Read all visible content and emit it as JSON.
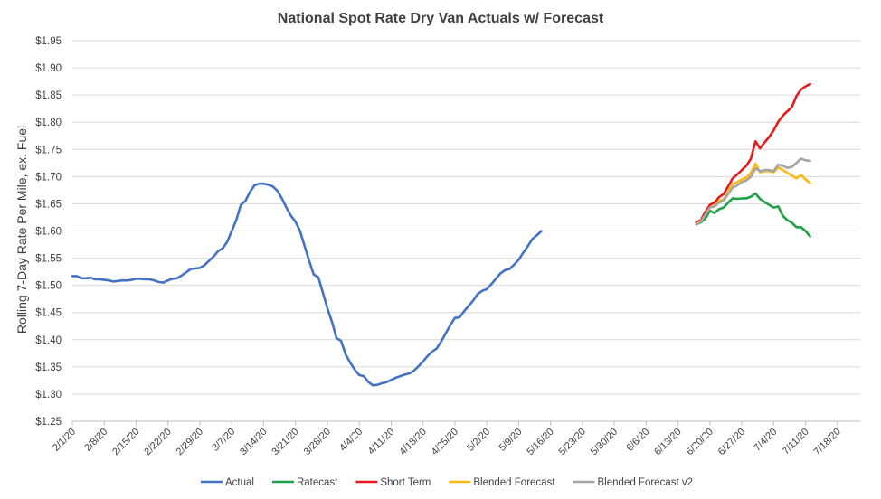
{
  "chart_data": {
    "type": "line",
    "title": "National Spot Rate Dry Van Actuals w/ Forecast",
    "ylabel": "Rolling 7-Day Rate Per Mile, ex. Fuel",
    "xlabel": "",
    "ylim": [
      1.25,
      1.95
    ],
    "yticks": [
      1.25,
      1.3,
      1.35,
      1.4,
      1.45,
      1.5,
      1.55,
      1.6,
      1.65,
      1.7,
      1.75,
      1.8,
      1.85,
      1.9,
      1.95
    ],
    "ytick_labels": [
      "$1.25",
      "$1.30",
      "$1.35",
      "$1.40",
      "$1.45",
      "$1.50",
      "$1.55",
      "$1.60",
      "$1.65",
      "$1.70",
      "$1.75",
      "$1.80",
      "$1.85",
      "$1.90",
      "$1.95"
    ],
    "x_start": "2/1/20",
    "x_end": "7/23/20",
    "xtick_labels": [
      "2/1/20",
      "2/8/20",
      "2/15/20",
      "2/22/20",
      "2/29/20",
      "3/7/20",
      "3/14/20",
      "3/21/20",
      "3/28/20",
      "4/4/20",
      "4/11/20",
      "4/18/20",
      "4/25/20",
      "5/2/20",
      "5/9/20",
      "5/16/20",
      "5/23/20",
      "5/30/20",
      "6/6/20",
      "6/13/20",
      "6/20/20",
      "6/27/20",
      "7/4/20",
      "7/11/20",
      "7/18/20"
    ],
    "grid": "horizontal",
    "legend": "bottom",
    "series": [
      {
        "name": "Actual",
        "color": "#4472c4",
        "start": "2/1/20",
        "values": [
          1.517,
          1.517,
          1.513,
          1.513,
          1.514,
          1.511,
          1.511,
          1.51,
          1.509,
          1.507,
          1.508,
          1.509,
          1.509,
          1.51,
          1.512,
          1.512,
          1.511,
          1.511,
          1.509,
          1.506,
          1.505,
          1.509,
          1.512,
          1.513,
          1.518,
          1.524,
          1.53,
          1.531,
          1.532,
          1.537,
          1.545,
          1.553,
          1.563,
          1.568,
          1.58,
          1.6,
          1.62,
          1.648,
          1.655,
          1.672,
          1.684,
          1.687,
          1.687,
          1.685,
          1.682,
          1.674,
          1.66,
          1.643,
          1.628,
          1.617,
          1.6,
          1.572,
          1.545,
          1.52,
          1.515,
          1.487,
          1.458,
          1.433,
          1.403,
          1.398,
          1.373,
          1.358,
          1.345,
          1.335,
          1.333,
          1.322,
          1.316,
          1.317,
          1.32,
          1.322,
          1.326,
          1.33,
          1.333,
          1.336,
          1.338,
          1.343,
          1.351,
          1.36,
          1.37,
          1.378,
          1.384,
          1.397,
          1.412,
          1.427,
          1.44,
          1.441,
          1.452,
          1.462,
          1.472,
          1.484,
          1.49,
          1.493,
          1.502,
          1.512,
          1.522,
          1.528,
          1.53,
          1.538,
          1.547,
          1.56,
          1.572,
          1.585,
          1.592,
          1.6
        ]
      },
      {
        "name": "Ratecast",
        "color": "#21a04a",
        "start": "6/17/20",
        "values": [
          1.612,
          1.616,
          1.623,
          1.637,
          1.633,
          1.64,
          1.643,
          1.652,
          1.66,
          1.659,
          1.66,
          1.66,
          1.663,
          1.669,
          1.659,
          1.653,
          1.648,
          1.643,
          1.645,
          1.628,
          1.62,
          1.615,
          1.607,
          1.607,
          1.6,
          1.59
        ]
      },
      {
        "name": "Short Term",
        "color": "#e41a1c",
        "start": "6/17/20",
        "values": [
          1.616,
          1.62,
          1.635,
          1.648,
          1.652,
          1.662,
          1.668,
          1.682,
          1.697,
          1.704,
          1.712,
          1.72,
          1.733,
          1.765,
          1.752,
          1.763,
          1.773,
          1.785,
          1.801,
          1.812,
          1.82,
          1.828,
          1.848,
          1.86,
          1.866,
          1.87
        ]
      },
      {
        "name": "Blended Forecast",
        "color": "#fcb913",
        "start": "6/17/20",
        "values": [
          1.613,
          1.618,
          1.63,
          1.643,
          1.646,
          1.655,
          1.658,
          1.672,
          1.686,
          1.69,
          1.695,
          1.698,
          1.707,
          1.724,
          1.708,
          1.71,
          1.71,
          1.708,
          1.717,
          1.712,
          1.707,
          1.702,
          1.697,
          1.703,
          1.695,
          1.688
        ]
      },
      {
        "name": "Blended Forecast v2",
        "color": "#a5a5a5",
        "start": "6/17/20",
        "values": [
          1.612,
          1.618,
          1.63,
          1.643,
          1.645,
          1.652,
          1.656,
          1.668,
          1.68,
          1.684,
          1.69,
          1.693,
          1.7,
          1.715,
          1.71,
          1.712,
          1.712,
          1.71,
          1.722,
          1.72,
          1.716,
          1.718,
          1.725,
          1.733,
          1.73,
          1.729
        ]
      }
    ]
  }
}
